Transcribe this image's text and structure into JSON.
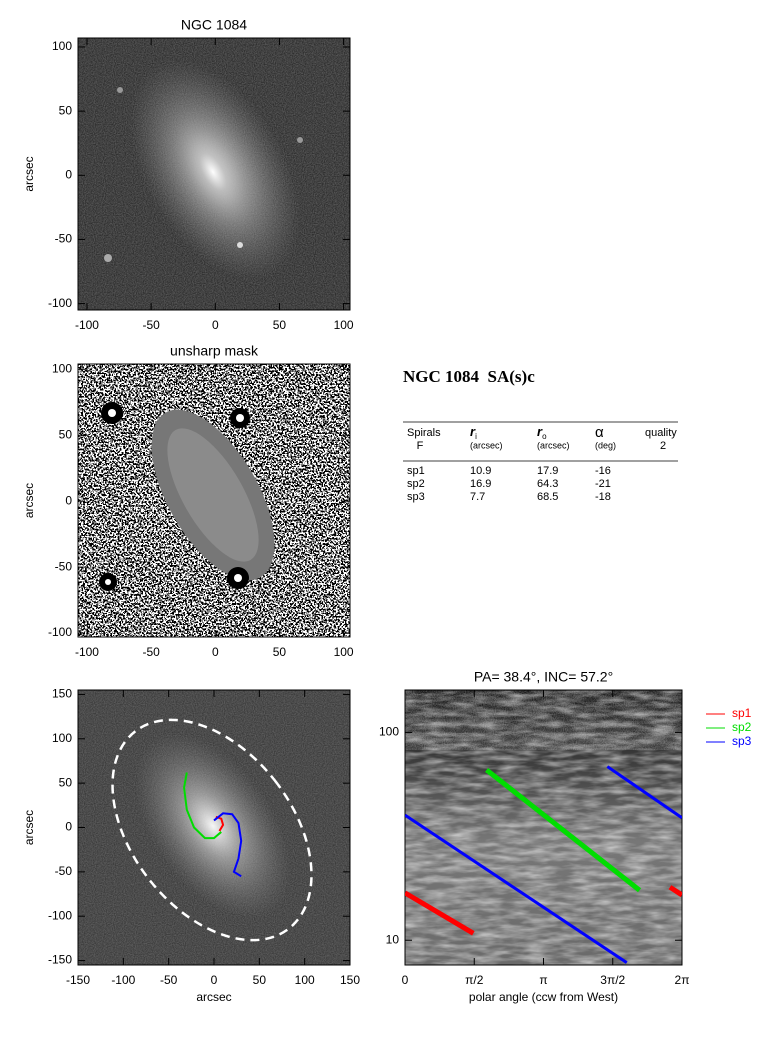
{
  "chart_data": [
    {
      "type": "image",
      "title": "NGC 1084",
      "ylabel": "arcsec",
      "xlim": [
        -107,
        105
      ],
      "ylim": [
        -105,
        107
      ],
      "xticks": [
        -100,
        -50,
        0,
        50,
        100
      ],
      "yticks": [
        -100,
        -50,
        0,
        50,
        100
      ]
    },
    {
      "type": "image",
      "title": "unsharp mask",
      "ylabel": "arcsec",
      "xlim": [
        -107,
        105
      ],
      "ylim": [
        -103,
        104
      ],
      "xticks": [
        -100,
        -50,
        0,
        50,
        100
      ],
      "yticks": [
        -100,
        -50,
        0,
        50,
        100
      ]
    },
    {
      "type": "line",
      "xlabel": "arcsec",
      "ylabel": "arcsec",
      "xlim": [
        -150,
        150
      ],
      "ylim": [
        -155,
        155
      ],
      "xticks": [
        -150,
        -100,
        -50,
        0,
        50,
        100,
        150
      ],
      "yticks": [
        -150,
        -100,
        -50,
        0,
        50,
        100,
        150
      ],
      "series": [
        {
          "color": "#ff0000",
          "x": [
            2,
            8,
            10,
            6
          ],
          "values": [
            12,
            10,
            3,
            -4
          ]
        },
        {
          "color": "#00dd00",
          "x": [
            -30,
            -33,
            -30,
            -22,
            -10,
            0,
            8
          ],
          "values": [
            62,
            45,
            20,
            0,
            -12,
            -12,
            -5
          ]
        },
        {
          "color": "#0000ff",
          "x": [
            0,
            10,
            20,
            27,
            30,
            27,
            22,
            30
          ],
          "values": [
            8,
            16,
            15,
            5,
            -15,
            -35,
            -50,
            -55
          ]
        }
      ]
    },
    {
      "type": "line",
      "title": "PA= 38.4°, INC= 57.2°",
      "xlabel": "polar angle (ccw from West)",
      "xlim": [
        0,
        6.2832
      ],
      "ylim": [
        7.6,
        160
      ],
      "log_y": true,
      "legend": "right",
      "xticks": [
        0,
        {
          "value": 1.5708,
          "label": "π/2"
        },
        {
          "value": 3.1416,
          "label": "π"
        },
        {
          "value": 4.7124,
          "label": "3π/2"
        },
        {
          "value": 6.2832,
          "label": "2π"
        }
      ],
      "yticks": [
        10,
        100
      ],
      "series": [
        {
          "name": "sp1",
          "color": "#ff0000",
          "x": [
            0,
            1.55,
            null,
            6.01,
            6.2832
          ],
          "values": [
            16.9,
            10.8,
            null,
            18.0,
            16.5
          ]
        },
        {
          "name": "sp2",
          "color": "#00dd00",
          "x": [
            1.85,
            5.32
          ],
          "values": [
            66,
            17.4
          ]
        },
        {
          "name": "sp3",
          "color": "#0000ff",
          "x": [
            0,
            5.03,
            null,
            4.59,
            6.2832
          ],
          "values": [
            40,
            7.8,
            null,
            68.5,
            38.8
          ]
        }
      ]
    }
  ],
  "table": {
    "title": "NGC 1084  SA(s)c",
    "columns": [
      {
        "label": "Spirals",
        "note": "F"
      },
      {
        "label": "r",
        "subscript": "i",
        "note": "(arcsec)"
      },
      {
        "label": "r",
        "subscript": "o",
        "note": "(arcsec)"
      },
      {
        "label": "α",
        "note": "(deg)"
      },
      {
        "label": "quality",
        "note": "2"
      }
    ],
    "rows": [
      [
        "sp1",
        "10.9",
        "17.9",
        "-16"
      ],
      [
        "sp2",
        "16.9",
        "64.3",
        "-21"
      ],
      [
        "sp3",
        "7.7",
        "68.5",
        "-18"
      ]
    ]
  }
}
